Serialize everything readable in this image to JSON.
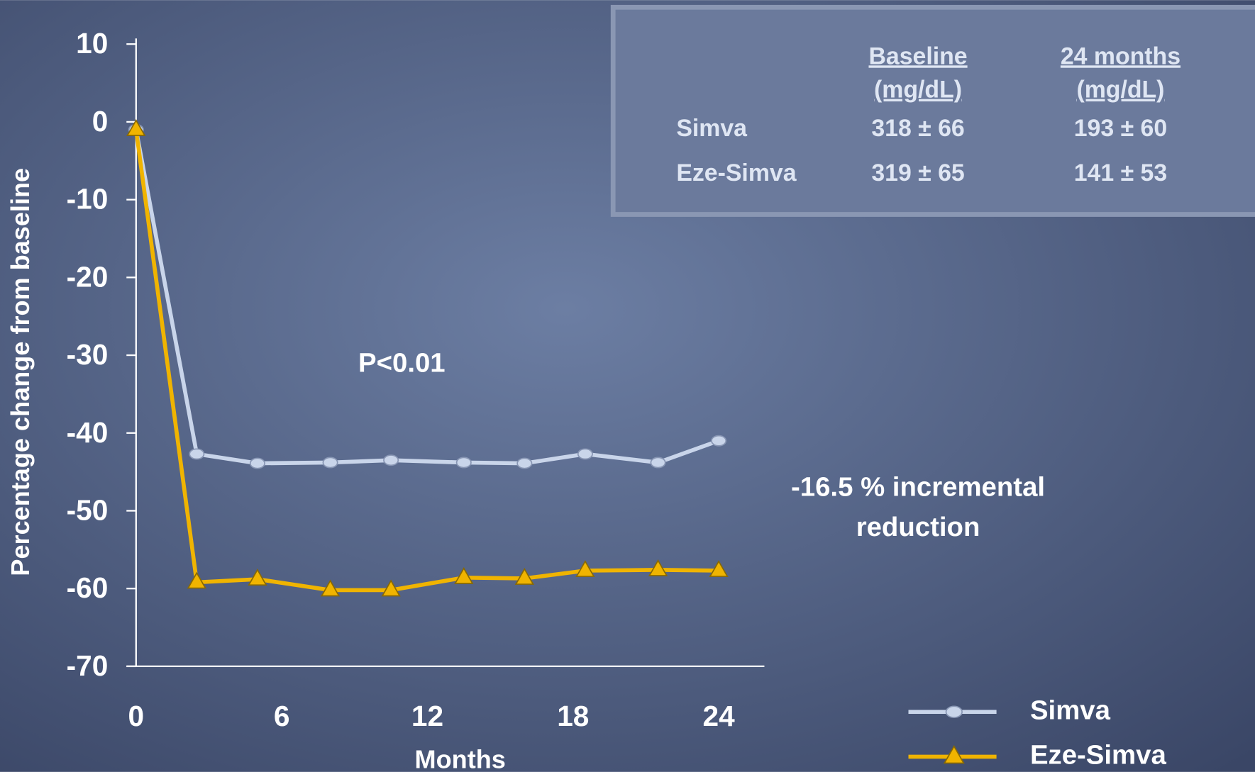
{
  "chart_data": {
    "type": "line",
    "y_label": "Percentage change from baseline",
    "x_label": "Months",
    "x": [
      0,
      2.5,
      5,
      8,
      10.5,
      13.5,
      16,
      18.5,
      21.5,
      24
    ],
    "series": [
      {
        "name": "Simva",
        "color": "#c9d5ea",
        "marker": "circle",
        "values": [
          -1,
          -42.7,
          -43.9,
          -43.8,
          -43.5,
          -43.8,
          -43.9,
          -42.7,
          -43.8,
          -41
        ]
      },
      {
        "name": "Eze-Simva",
        "color": "#f0b400",
        "marker": "triangle",
        "values": [
          -1,
          -59.2,
          -58.8,
          -60.2,
          -60.2,
          -58.6,
          -58.7,
          -57.7,
          -57.6,
          -57.7
        ]
      }
    ],
    "xlim": [
      0,
      24
    ],
    "xticks": [
      0,
      6,
      12,
      18,
      24
    ],
    "ylim": [
      -70,
      10
    ],
    "yticks": [
      10,
      0,
      {
        "value": -10,
        "label": "-10"
      },
      {
        "value": -20,
        "label": "-20"
      },
      {
        "value": -30,
        "label": "-30"
      },
      {
        "value": -40,
        "label": "-40"
      },
      {
        "value": -50,
        "label": "-50"
      },
      {
        "value": -60,
        "label": "-60"
      },
      {
        "value": -70,
        "label": "-70"
      }
    ],
    "annotations": [
      "P<0.01",
      [
        "-16.5 % incremental",
        "reduction"
      ]
    ],
    "legend": "bottom-right"
  },
  "table": {
    "header": [
      [
        "Baseline",
        "(mg/dL)"
      ],
      [
        "24 months",
        "(mg/dL)"
      ]
    ],
    "rows": [
      [
        "Simva",
        "318 ± 66",
        "193 ± 60"
      ],
      [
        "Eze-Simva",
        "319 ± 65",
        "141 ± 53"
      ]
    ]
  }
}
